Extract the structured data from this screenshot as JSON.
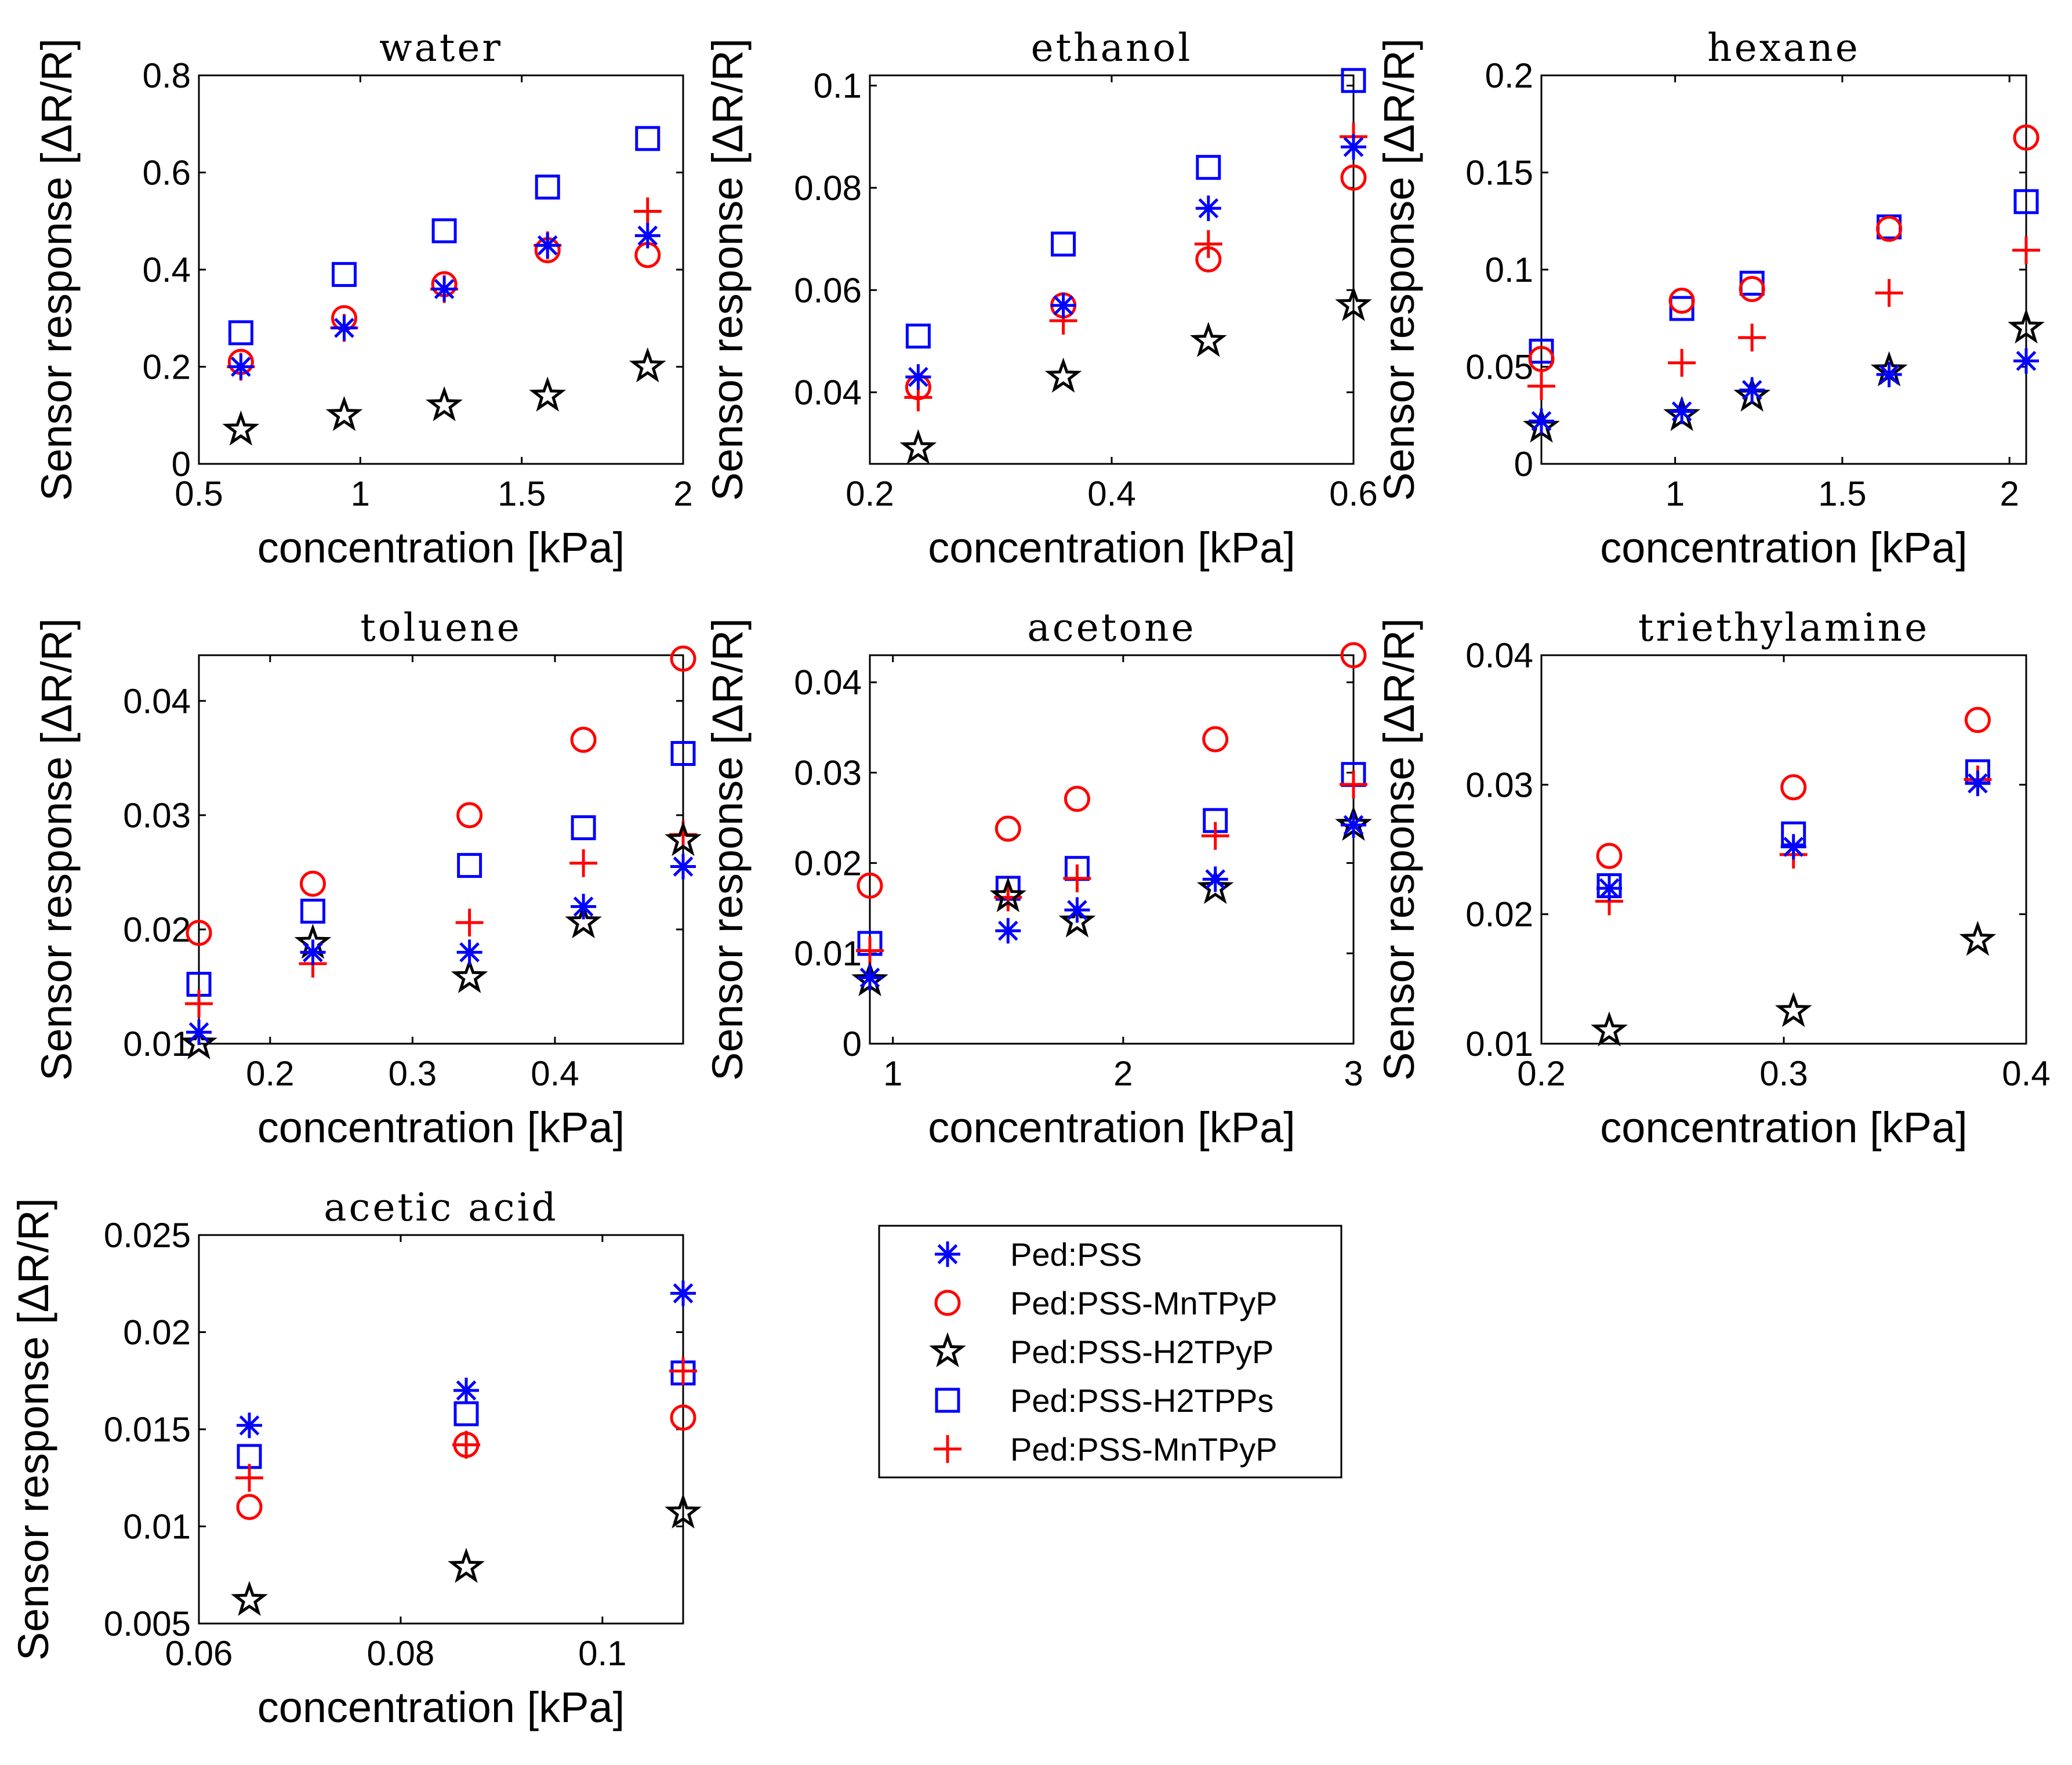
{
  "figure": {
    "ylabel": "Sensor response [ΔR/R]",
    "xlabel": "concentration [kPa]"
  },
  "legend": {
    "entries": [
      {
        "label": "Ped:PSS",
        "marker": "asterisk",
        "color": "#0000ff"
      },
      {
        "label": "Ped:PSS-MnTPyP",
        "marker": "circle",
        "color": "#ff0000"
      },
      {
        "label": "Ped:PSS-H2TPyP",
        "marker": "star",
        "color": "#000000"
      },
      {
        "label": "Ped:PSS-H2TPPs",
        "marker": "square",
        "color": "#0000ff"
      },
      {
        "label": "Ped:PSS-MnTPyP",
        "marker": "plus",
        "color": "#ff0000"
      }
    ]
  },
  "chart_data": [
    {
      "type": "scatter",
      "title": "water",
      "xlabel": "concentration [kPa]",
      "ylabel": "Sensor response [ΔR/R]",
      "xlim": [
        0.5,
        2
      ],
      "ylim": [
        0,
        0.8
      ],
      "xticks": [
        "0.5",
        "1",
        "1.5",
        "2"
      ],
      "xtick_values": [
        0.5,
        1,
        1.5,
        2
      ],
      "yticks": [
        "0",
        "0.2",
        "0.4",
        "0.6",
        "0.8"
      ],
      "ytick_values": [
        0,
        0.2,
        0.4,
        0.6,
        0.8
      ],
      "x": [
        0.63,
        0.95,
        1.26,
        1.58,
        1.89
      ],
      "series": [
        {
          "name": "Ped:PSS",
          "values": [
            0.2,
            0.28,
            0.36,
            0.45,
            0.47
          ]
        },
        {
          "name": "Ped:PSS-MnTPyP",
          "values": [
            0.21,
            0.3,
            0.37,
            0.44,
            0.43
          ]
        },
        {
          "name": "Ped:PSS-H2TPyP",
          "values": [
            0.07,
            0.1,
            0.12,
            0.14,
            0.2
          ]
        },
        {
          "name": "Ped:PSS-H2TPPs",
          "values": [
            0.27,
            0.39,
            0.48,
            0.57,
            0.67
          ]
        },
        {
          "name": "Ped:PSS-MnTPyP",
          "values": [
            0.2,
            0.28,
            0.36,
            0.45,
            0.52
          ]
        }
      ]
    },
    {
      "type": "scatter",
      "title": "ethanol",
      "xlabel": "concentration [kPa]",
      "ylabel": "Sensor response [ΔR/R]",
      "xlim": [
        0.2,
        0.6
      ],
      "ylim": [
        0.026,
        0.102
      ],
      "xticks": [
        "0.2",
        "0.4",
        "0.6"
      ],
      "xtick_values": [
        0.2,
        0.4,
        0.6
      ],
      "yticks": [
        "0.04",
        "0.06",
        "0.08",
        "0.1"
      ],
      "ytick_values": [
        0.04,
        0.06,
        0.08,
        0.1
      ],
      "x": [
        0.24,
        0.36,
        0.48,
        0.6
      ],
      "series": [
        {
          "name": "Ped:PSS",
          "values": [
            0.043,
            0.057,
            0.076,
            0.088
          ]
        },
        {
          "name": "Ped:PSS-MnTPyP",
          "values": [
            0.041,
            0.057,
            0.066,
            0.082
          ]
        },
        {
          "name": "Ped:PSS-H2TPyP",
          "values": [
            0.029,
            0.043,
            0.05,
            0.057
          ]
        },
        {
          "name": "Ped:PSS-H2TPPs",
          "values": [
            0.051,
            0.069,
            0.084,
            0.101
          ]
        },
        {
          "name": "Ped:PSS-MnTPyP",
          "values": [
            0.039,
            0.054,
            0.069,
            0.09
          ]
        }
      ]
    },
    {
      "type": "scatter",
      "title": "hexane",
      "xlabel": "concentration [kPa]",
      "ylabel": "Sensor response [ΔR/R]",
      "xlim": [
        0.6,
        2.05
      ],
      "ylim": [
        0,
        0.2
      ],
      "xticks": [
        "1",
        "1.5",
        "2"
      ],
      "xtick_values": [
        1,
        1.5,
        2
      ],
      "yticks": [
        "0",
        "0.05",
        "0.1",
        "0.15",
        "0.2"
      ],
      "ytick_values": [
        0,
        0.05,
        0.1,
        0.15,
        0.2
      ],
      "x": [
        0.6,
        1.02,
        1.23,
        1.64,
        2.05
      ],
      "series": [
        {
          "name": "Ped:PSS",
          "values": [
            0.022,
            0.027,
            0.038,
            0.046,
            0.053
          ]
        },
        {
          "name": "Ped:PSS-MnTPyP",
          "values": [
            0.054,
            0.084,
            0.09,
            0.121,
            0.168
          ]
        },
        {
          "name": "Ped:PSS-H2TPyP",
          "values": [
            0.019,
            0.025,
            0.035,
            0.048,
            0.07
          ]
        },
        {
          "name": "Ped:PSS-H2TPPs",
          "values": [
            0.058,
            0.08,
            0.093,
            0.122,
            0.135
          ]
        },
        {
          "name": "Ped:PSS-MnTPyP",
          "values": [
            0.04,
            0.052,
            0.065,
            0.088,
            0.11
          ]
        }
      ]
    },
    {
      "type": "scatter",
      "title": "toluene",
      "xlabel": "concentration [kPa]",
      "ylabel": "Sensor response [ΔR/R]",
      "xlim": [
        0.15,
        0.49
      ],
      "ylim": [
        0.01,
        0.044
      ],
      "xticks": [
        "0.2",
        "0.3",
        "0.4"
      ],
      "xtick_values": [
        0.2,
        0.3,
        0.4
      ],
      "yticks": [
        "0.01",
        "0.02",
        "0.03",
        "0.04"
      ],
      "ytick_values": [
        0.01,
        0.02,
        0.03,
        0.04
      ],
      "x": [
        0.15,
        0.23,
        0.34,
        0.42,
        0.49
      ],
      "series": [
        {
          "name": "Ped:PSS",
          "values": [
            0.011,
            0.018,
            0.018,
            0.022,
            0.0255
          ]
        },
        {
          "name": "Ped:PSS-MnTPyP",
          "values": [
            0.0197,
            0.024,
            0.03,
            0.0366,
            0.0437
          ]
        },
        {
          "name": "Ped:PSS-H2TPyP",
          "values": [
            0.01,
            0.0188,
            0.0158,
            0.0206,
            0.0278
          ]
        },
        {
          "name": "Ped:PSS-H2TPPs",
          "values": [
            0.0152,
            0.0216,
            0.0256,
            0.0289,
            0.0354
          ]
        },
        {
          "name": "Ped:PSS-MnTPyP",
          "values": [
            0.0135,
            0.017,
            0.0206,
            0.0258,
            0.0283
          ]
        }
      ]
    },
    {
      "type": "scatter",
      "title": "acetone",
      "xlabel": "concentration [kPa]",
      "ylabel": "Sensor response [ΔR/R]",
      "xlim": [
        0.9,
        3
      ],
      "ylim": [
        0,
        0.043
      ],
      "xticks": [
        "1",
        "2",
        "3"
      ],
      "xtick_values": [
        1,
        2,
        3
      ],
      "yticks": [
        "0",
        "0.01",
        "0.02",
        "0.03",
        "0.04"
      ],
      "ytick_values": [
        0,
        0.01,
        0.02,
        0.03,
        0.04
      ],
      "x": [
        0.9,
        1.5,
        1.8,
        2.4,
        3.0
      ],
      "series": [
        {
          "name": "Ped:PSS",
          "values": [
            0.0073,
            0.0125,
            0.0148,
            0.0182,
            0.0242
          ]
        },
        {
          "name": "Ped:PSS-MnTPyP",
          "values": [
            0.0175,
            0.0238,
            0.0271,
            0.0337,
            0.043
          ]
        },
        {
          "name": "Ped:PSS-H2TPyP",
          "values": [
            0.007,
            0.0163,
            0.0135,
            0.0172,
            0.0242
          ]
        },
        {
          "name": "Ped:PSS-H2TPPs",
          "values": [
            0.0111,
            0.0172,
            0.0194,
            0.0247,
            0.0298
          ]
        },
        {
          "name": "Ped:PSS-MnTPyP",
          "values": [
            0.0103,
            0.0162,
            0.0183,
            0.023,
            0.0287
          ]
        }
      ]
    },
    {
      "type": "scatter",
      "title": "triethylamine",
      "xlabel": "concentration [kPa]",
      "ylabel": "Sensor response [ΔR/R]",
      "xlim": [
        0.2,
        0.4
      ],
      "ylim": [
        0.01,
        0.04
      ],
      "xticks": [
        "0.2",
        "0.3",
        "0.4"
      ],
      "xtick_values": [
        0.2,
        0.3,
        0.4
      ],
      "yticks": [
        "0.01",
        "0.02",
        "0.03",
        "0.04"
      ],
      "ytick_values": [
        0.01,
        0.02,
        0.03,
        0.04
      ],
      "x": [
        0.228,
        0.304,
        0.38
      ],
      "series": [
        {
          "name": "Ped:PSS",
          "values": [
            0.022,
            0.0252,
            0.0301
          ]
        },
        {
          "name": "Ped:PSS-MnTPyP",
          "values": [
            0.0245,
            0.0298,
            0.035
          ]
        },
        {
          "name": "Ped:PSS-H2TPyP",
          "values": [
            0.011,
            0.0125,
            0.018
          ]
        },
        {
          "name": "Ped:PSS-H2TPPs",
          "values": [
            0.0222,
            0.0262,
            0.031
          ]
        },
        {
          "name": "Ped:PSS-MnTPyP",
          "values": [
            0.021,
            0.0246,
            0.0304
          ]
        }
      ]
    },
    {
      "type": "scatter",
      "title": "acetic acid",
      "xlabel": "concentration [kPa]",
      "ylabel": "Sensor response [ΔR/R]",
      "xlim": [
        0.06,
        0.108
      ],
      "ylim": [
        0.005,
        0.025
      ],
      "xticks": [
        "0.06",
        "0.08",
        "0.1"
      ],
      "xtick_values": [
        0.06,
        0.08,
        0.1
      ],
      "yticks": [
        "0.005",
        "0.01",
        "0.015",
        "0.02",
        "0.025"
      ],
      "ytick_values": [
        0.005,
        0.01,
        0.015,
        0.02,
        0.025
      ],
      "x": [
        0.065,
        0.0865,
        0.108
      ],
      "series": [
        {
          "name": "Ped:PSS",
          "values": [
            0.0152,
            0.017,
            0.022
          ]
        },
        {
          "name": "Ped:PSS-MnTPyP",
          "values": [
            0.011,
            0.0142,
            0.0156
          ]
        },
        {
          "name": "Ped:PSS-H2TPyP",
          "values": [
            0.0062,
            0.0079,
            0.0107
          ]
        },
        {
          "name": "Ped:PSS-H2TPPs",
          "values": [
            0.0136,
            0.0158,
            0.0179
          ]
        },
        {
          "name": "Ped:PSS-MnTPyP",
          "values": [
            0.0125,
            0.0142,
            0.018
          ]
        }
      ]
    }
  ]
}
